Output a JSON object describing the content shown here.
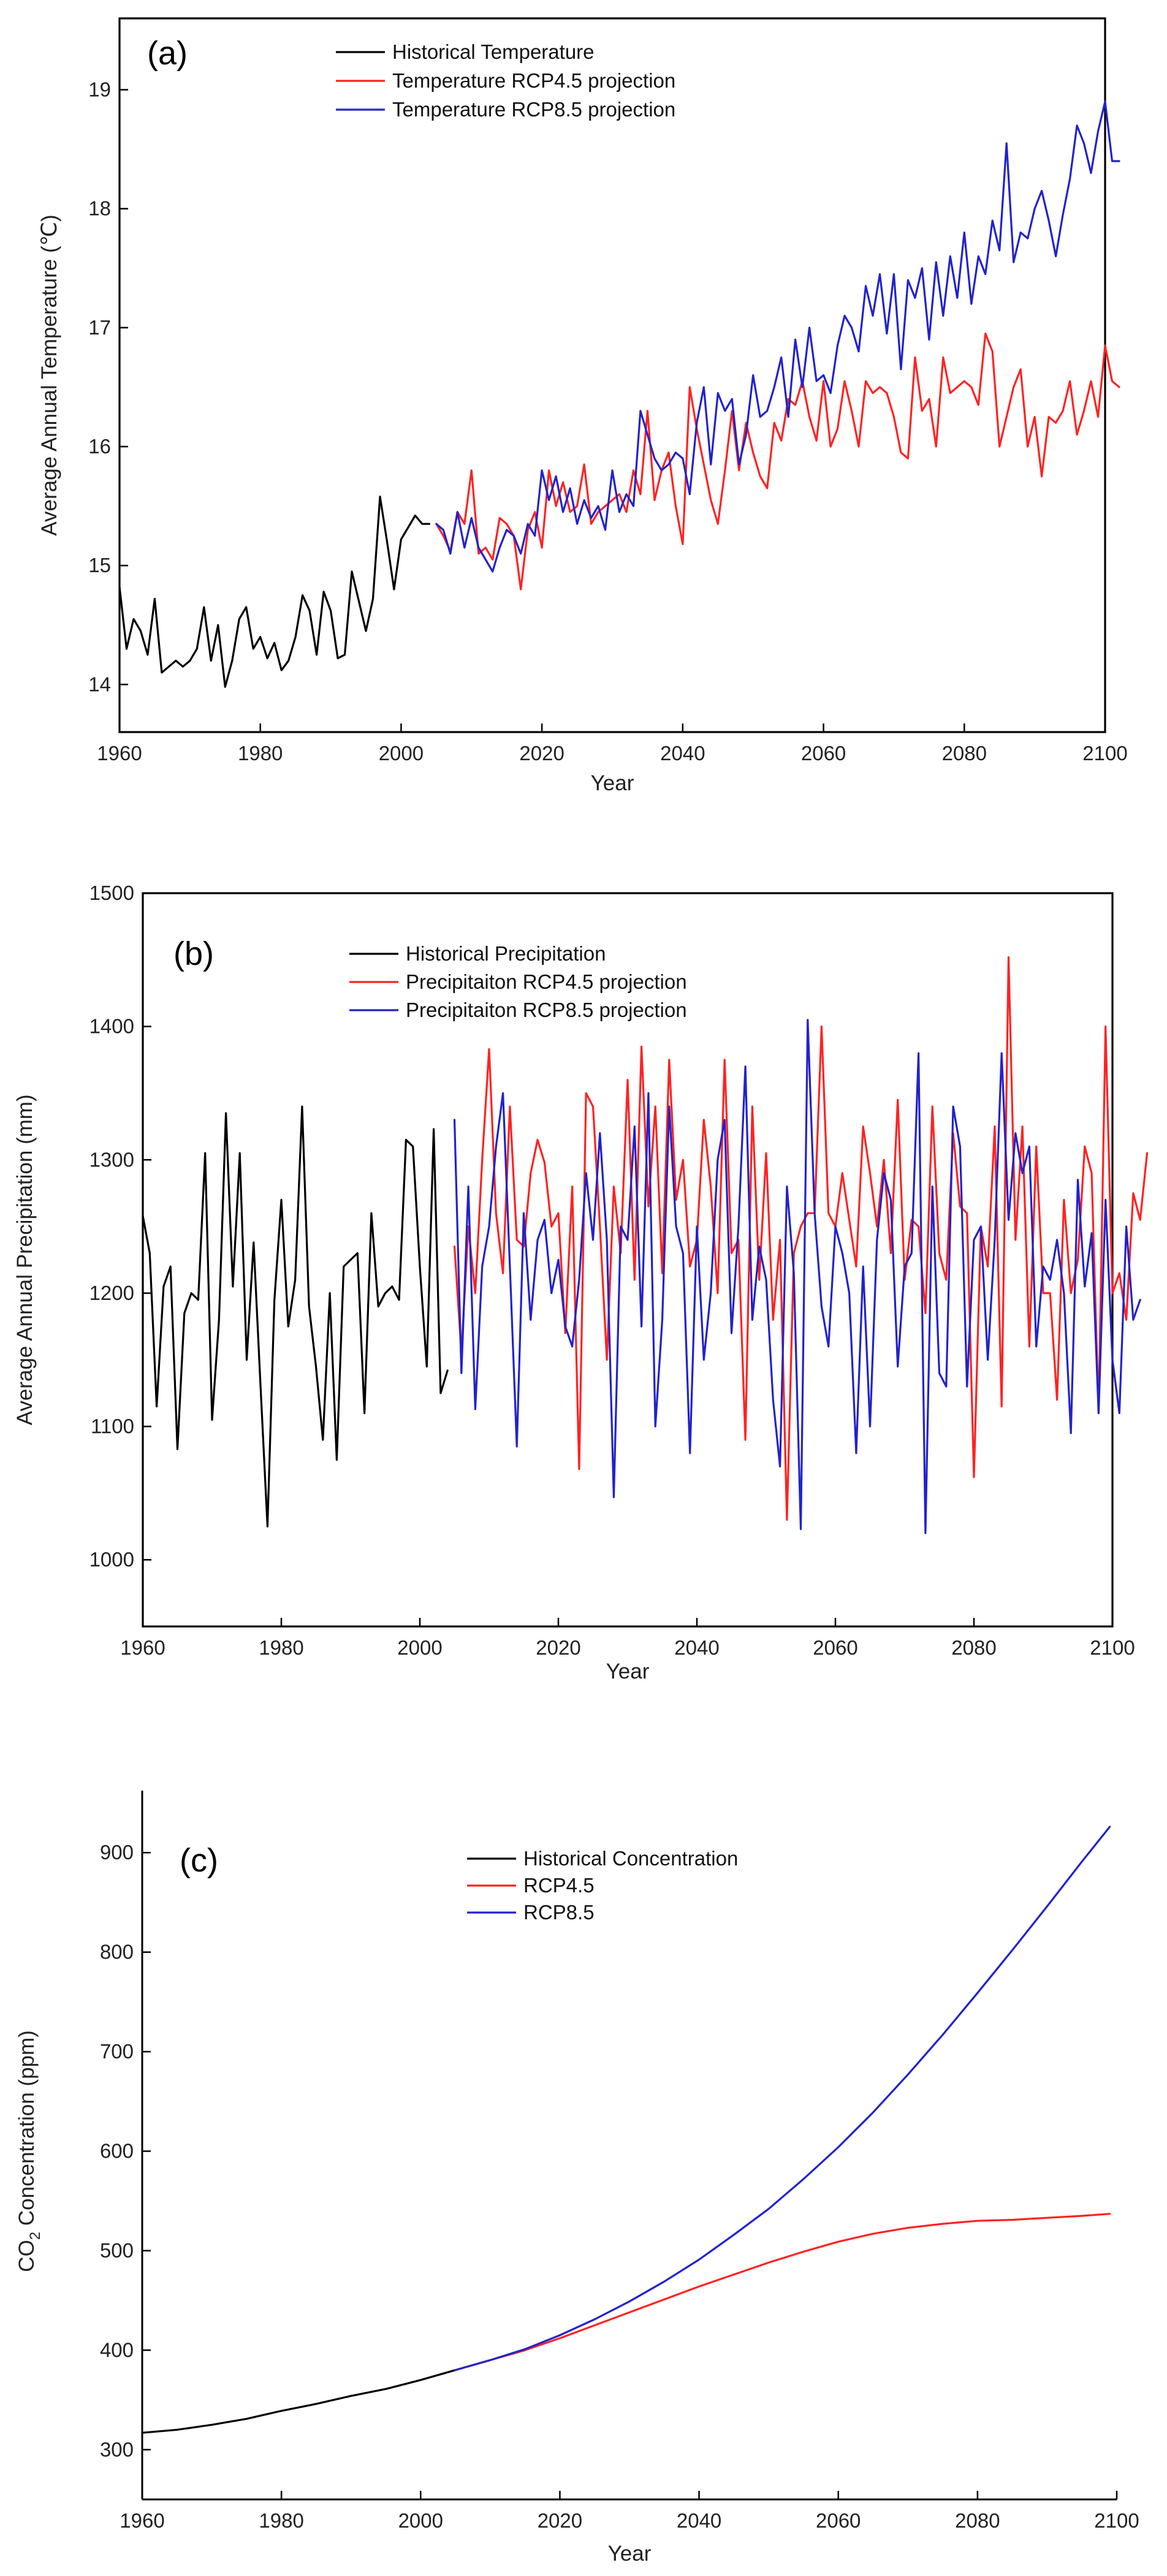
{
  "chart_data": [
    {
      "type": "line",
      "panel_label": "(a)",
      "title": "",
      "xlabel": "Year",
      "ylabel": "Average Annual Temperature (℃)",
      "xlim": [
        1960,
        2100
      ],
      "ylim": [
        13.6,
        19.6
      ],
      "xticks": [
        1960,
        1980,
        2000,
        2020,
        2040,
        2060,
        2080,
        2100
      ],
      "yticks": [
        14,
        15,
        16,
        17,
        18,
        19
      ],
      "legend_position": "top-center",
      "series": [
        {
          "name": "Historical Temperature",
          "color": "#000000",
          "x_start": 1960,
          "values": [
            14.82,
            14.3,
            14.55,
            14.45,
            14.25,
            14.72,
            14.1,
            14.15,
            14.2,
            14.15,
            14.2,
            14.3,
            14.65,
            14.2,
            14.5,
            13.98,
            14.2,
            14.55,
            14.65,
            14.3,
            14.4,
            14.22,
            14.35,
            14.12,
            14.2,
            14.4,
            14.75,
            14.62,
            14.25,
            14.78,
            14.62,
            14.22,
            14.25,
            14.95,
            14.7,
            14.45,
            14.72,
            15.58,
            15.2,
            14.8,
            15.22,
            15.32,
            15.42,
            15.35,
            15.35
          ]
        },
        {
          "name": "Temperature RCP4.5 projection",
          "color": "#ff2222",
          "x_start": 2005,
          "values": [
            15.35,
            15.25,
            15.12,
            15.45,
            15.35,
            15.8,
            15.1,
            15.15,
            15.05,
            15.4,
            15.35,
            15.25,
            14.8,
            15.3,
            15.45,
            15.15,
            15.8,
            15.5,
            15.7,
            15.45,
            15.5,
            15.85,
            15.35,
            15.45,
            15.5,
            15.55,
            15.6,
            15.45,
            15.8,
            15.6,
            16.3,
            15.55,
            15.8,
            15.95,
            15.5,
            15.18,
            16.5,
            16.15,
            15.85,
            15.55,
            15.35,
            15.8,
            16.3,
            15.8,
            16.2,
            15.95,
            15.75,
            15.65,
            16.2,
            16.05,
            16.4,
            16.35,
            16.55,
            16.25,
            16.05,
            16.55,
            16.0,
            16.15,
            16.55,
            16.3,
            16.0,
            16.55,
            16.45,
            16.5,
            16.45,
            16.25,
            15.95,
            15.9,
            16.75,
            16.3,
            16.4,
            16.0,
            16.75,
            16.45,
            16.5,
            16.55,
            16.5,
            16.35,
            16.95,
            16.8,
            16.0,
            16.25,
            16.5,
            16.65,
            16.0,
            16.25,
            15.75,
            16.25,
            16.2,
            16.3,
            16.55,
            16.1,
            16.3,
            16.55,
            16.25,
            16.85,
            16.55,
            16.5
          ]
        },
        {
          "name": "Temperature RCP8.5 projection",
          "color": "#2222cc",
          "x_start": 2005,
          "values": [
            15.35,
            15.3,
            15.1,
            15.45,
            15.15,
            15.4,
            15.15,
            15.05,
            14.95,
            15.15,
            15.3,
            15.25,
            15.1,
            15.35,
            15.25,
            15.8,
            15.55,
            15.75,
            15.45,
            15.65,
            15.35,
            15.55,
            15.4,
            15.5,
            15.3,
            15.8,
            15.45,
            15.6,
            15.5,
            16.3,
            16.1,
            15.9,
            15.8,
            15.85,
            15.95,
            15.9,
            15.6,
            16.2,
            16.5,
            15.85,
            16.45,
            16.3,
            16.4,
            15.85,
            16.1,
            16.6,
            16.25,
            16.3,
            16.5,
            16.75,
            16.25,
            16.9,
            16.5,
            17.0,
            16.55,
            16.6,
            16.45,
            16.85,
            17.1,
            17.0,
            16.8,
            17.35,
            17.1,
            17.45,
            16.95,
            17.45,
            16.65,
            17.4,
            17.25,
            17.5,
            16.9,
            17.55,
            17.1,
            17.6,
            17.25,
            17.8,
            17.2,
            17.6,
            17.45,
            17.9,
            17.65,
            18.55,
            17.55,
            17.8,
            17.75,
            18.0,
            18.15,
            17.9,
            17.6,
            17.95,
            18.25,
            18.7,
            18.55,
            18.3,
            18.65,
            18.9,
            18.4,
            18.4
          ]
        }
      ]
    },
    {
      "type": "line",
      "panel_label": "(b)",
      "title": "",
      "xlabel": "Year",
      "ylabel": "Average Annual Precipitation (mm)",
      "xlim": [
        1960,
        2100
      ],
      "ylim": [
        950,
        1500
      ],
      "xticks": [
        1960,
        1980,
        2000,
        2020,
        2040,
        2060,
        2080,
        2100
      ],
      "yticks": [
        1000,
        1100,
        1200,
        1300,
        1400,
        1500
      ],
      "legend_position": "top-center",
      "series": [
        {
          "name": "Historical Precipitation",
          "color": "#000000",
          "x_start": 1960,
          "values": [
            1258,
            1230,
            1115,
            1205,
            1220,
            1083,
            1185,
            1200,
            1195,
            1305,
            1105,
            1180,
            1335,
            1205,
            1305,
            1150,
            1238,
            1130,
            1025,
            1195,
            1270,
            1175,
            1210,
            1340,
            1190,
            1145,
            1090,
            1200,
            1075,
            1220,
            1225,
            1230,
            1110,
            1260,
            1190,
            1200,
            1205,
            1195,
            1315,
            1310,
            1220,
            1145,
            1323,
            1125,
            1142
          ]
        },
        {
          "name": "Precipitaiton RCP4.5 projection",
          "color": "#ff2222",
          "x_start": 2005,
          "values": [
            1235,
            1155,
            1250,
            1200,
            1300,
            1383,
            1260,
            1215,
            1340,
            1240,
            1235,
            1290,
            1315,
            1298,
            1250,
            1260,
            1170,
            1280,
            1068,
            1350,
            1340,
            1250,
            1150,
            1280,
            1230,
            1360,
            1210,
            1385,
            1265,
            1340,
            1215,
            1375,
            1270,
            1300,
            1220,
            1240,
            1330,
            1280,
            1200,
            1375,
            1230,
            1240,
            1090,
            1340,
            1210,
            1305,
            1180,
            1240,
            1030,
            1230,
            1250,
            1260,
            1260,
            1400,
            1260,
            1250,
            1290,
            1255,
            1220,
            1325,
            1290,
            1250,
            1300,
            1230,
            1345,
            1210,
            1255,
            1250,
            1185,
            1340,
            1230,
            1210,
            1320,
            1265,
            1260,
            1062,
            1250,
            1220,
            1325,
            1115,
            1452,
            1240,
            1325,
            1160,
            1310,
            1200,
            1200,
            1120,
            1270,
            1200,
            1225,
            1310,
            1290,
            1110,
            1400,
            1200,
            1215,
            1180,
            1275,
            1255,
            1305
          ]
        },
        {
          "name": "Precipitaiton RCP8.5 projection",
          "color": "#2222cc",
          "x_start": 2005,
          "values": [
            1330,
            1140,
            1280,
            1113,
            1220,
            1250,
            1310,
            1350,
            1220,
            1085,
            1260,
            1180,
            1240,
            1255,
            1200,
            1225,
            1175,
            1160,
            1210,
            1290,
            1240,
            1320,
            1240,
            1047,
            1250,
            1240,
            1325,
            1175,
            1350,
            1100,
            1180,
            1340,
            1250,
            1230,
            1080,
            1250,
            1150,
            1200,
            1300,
            1330,
            1170,
            1250,
            1370,
            1180,
            1235,
            1210,
            1120,
            1070,
            1280,
            1215,
            1023,
            1405,
            1260,
            1190,
            1160,
            1250,
            1230,
            1200,
            1080,
            1220,
            1100,
            1240,
            1290,
            1270,
            1145,
            1220,
            1230,
            1380,
            1020,
            1280,
            1140,
            1130,
            1340,
            1310,
            1130,
            1240,
            1250,
            1150,
            1240,
            1380,
            1255,
            1320,
            1290,
            1310,
            1160,
            1220,
            1210,
            1240,
            1200,
            1095,
            1285,
            1205,
            1245,
            1110,
            1270,
            1150,
            1110,
            1250,
            1180,
            1195
          ]
        }
      ]
    },
    {
      "type": "line",
      "panel_label": "(c)",
      "title": "",
      "xlabel": "Year",
      "ylabel": "CO2 Concentration (ppm)",
      "ylabel_main": "CO",
      "ylabel_sub": "2",
      "ylabel_rest": " Concentration (ppm)",
      "xlim": [
        1960,
        2100
      ],
      "ylim": [
        250,
        950
      ],
      "xticks": [
        1960,
        1980,
        2000,
        2020,
        2040,
        2060,
        2080,
        2100
      ],
      "yticks": [
        300,
        400,
        500,
        600,
        700,
        800,
        900
      ],
      "legend_position": "top-center",
      "series": [
        {
          "name": "Historical Concentration",
          "color": "#000000",
          "x": [
            1960,
            1965,
            1970,
            1975,
            1980,
            1985,
            1990,
            1995,
            2000,
            2005
          ],
          "values": [
            317,
            320,
            325,
            331,
            339,
            346,
            354,
            361,
            370,
            380
          ]
        },
        {
          "name": "RCP4.5",
          "color": "#ff2222",
          "x": [
            2005,
            2010,
            2015,
            2020,
            2025,
            2030,
            2035,
            2040,
            2045,
            2050,
            2055,
            2060,
            2065,
            2070,
            2075,
            2080,
            2085,
            2090,
            2095,
            2099
          ],
          "values": [
            380,
            390,
            400,
            412,
            425,
            438,
            451,
            464,
            476,
            488,
            499,
            509,
            517,
            523,
            527,
            530,
            531,
            533,
            535,
            537
          ]
        },
        {
          "name": "RCP8.5",
          "color": "#2222cc",
          "x": [
            2005,
            2010,
            2015,
            2020,
            2025,
            2030,
            2035,
            2040,
            2045,
            2050,
            2055,
            2060,
            2065,
            2070,
            2075,
            2080,
            2085,
            2090,
            2095,
            2099
          ],
          "values": [
            380,
            390,
            401,
            415,
            431,
            449,
            469,
            491,
            516,
            542,
            572,
            604,
            639,
            677,
            717,
            759,
            802,
            846,
            891,
            926
          ]
        }
      ]
    }
  ]
}
